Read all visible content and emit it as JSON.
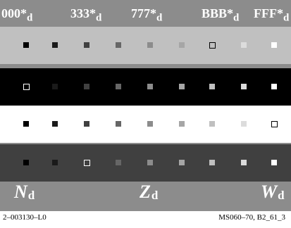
{
  "top_labels": [
    {
      "text": "000*",
      "sub": "d"
    },
    {
      "text": "333*",
      "sub": "d"
    },
    {
      "text": "777*",
      "sub": "d"
    },
    {
      "text": "BBB*",
      "sub": "d"
    },
    {
      "text": "FFF*",
      "sub": "d"
    }
  ],
  "bands": [
    {
      "background": "#c0c0c0",
      "marked_index": 6,
      "cells": [
        "#000000",
        "#1a1a1a",
        "#404040",
        "#666666",
        "#8c8c8c",
        "#a6a6a6",
        "#c0c0c0",
        "#dcdcdc",
        "#ffffff"
      ]
    },
    {
      "background": "#000000",
      "marked_index": 0,
      "cells": [
        "#000000",
        "#1a1a1a",
        "#404040",
        "#666666",
        "#8c8c8c",
        "#a6a6a6",
        "#c0c0c0",
        "#dcdcdc",
        "#ffffff"
      ]
    },
    {
      "background": "#ffffff",
      "marked_index": 8,
      "cells": [
        "#000000",
        "#1a1a1a",
        "#404040",
        "#666666",
        "#8c8c8c",
        "#a6a6a6",
        "#c0c0c0",
        "#dcdcdc",
        "#ffffff"
      ]
    },
    {
      "background": "#404040",
      "marked_index": 2,
      "cells": [
        "#000000",
        "#1a1a1a",
        "#404040",
        "#666666",
        "#8c8c8c",
        "#a6a6a6",
        "#c0c0c0",
        "#dcdcdc",
        "#ffffff"
      ]
    }
  ],
  "bottom_labels": [
    {
      "text": "N",
      "sub": "d"
    },
    {
      "text": "Z",
      "sub": "d"
    },
    {
      "text": "W",
      "sub": "d"
    }
  ],
  "footer": {
    "left": "2–003130–L0",
    "right": "MS060–70, B2_61_3"
  },
  "colors": {
    "panel": "#8c8c8c",
    "label_text": "#ffffff"
  }
}
